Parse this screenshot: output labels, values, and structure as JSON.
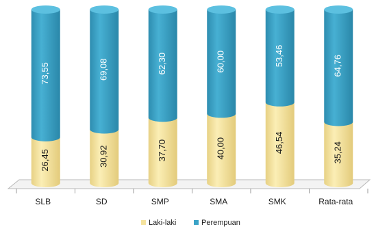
{
  "chart_data": {
    "type": "bar",
    "stacked": true,
    "style": "3d-cylinder",
    "categories": [
      "SLB",
      "SD",
      "SMP",
      "SMA",
      "SMK",
      "Rata-rata"
    ],
    "series": [
      {
        "name": "Laki-laki",
        "values": [
          26.45,
          30.92,
          37.7,
          40.0,
          46.54,
          35.24
        ],
        "labels": [
          "26,45",
          "30,92",
          "37,70",
          "40,00",
          "46,54",
          "35,24"
        ],
        "color": "#f5e39e",
        "label_color": "#1a1a1a"
      },
      {
        "name": "Perempuan",
        "values": [
          73.55,
          69.08,
          62.3,
          60.0,
          53.46,
          64.76
        ],
        "labels": [
          "73,55",
          "69,08",
          "62,30",
          "60,00",
          "53,46",
          "64,76"
        ],
        "color": "#3aa3c7",
        "label_color": "#ffffff"
      }
    ],
    "ylim": [
      0,
      100
    ],
    "value_label_orientation": "vertical",
    "grid": false,
    "legend": "bottom-center"
  }
}
